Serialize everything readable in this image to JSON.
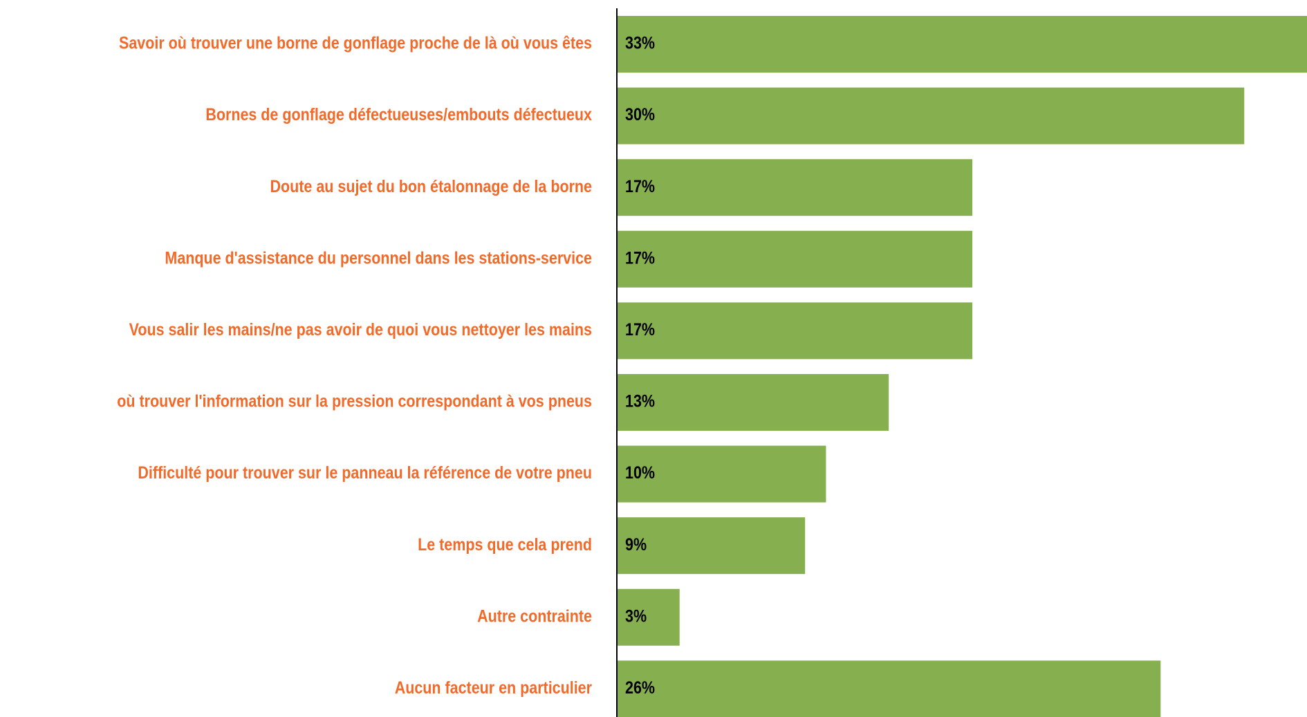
{
  "chart_data": {
    "type": "bar",
    "orientation": "horizontal",
    "categories": [
      "Savoir où trouver une borne de gonflage proche de là où vous êtes",
      "Bornes de gonflage défectueuses/embouts défectueux",
      "Doute au sujet du bon étalonnage de la borne",
      "Manque d'assistance du personnel dans les stations-service",
      "Vous salir les mains/ne pas avoir de quoi vous nettoyer les mains",
      "où trouver l'information sur la pression correspondant à vos pneus",
      "Difficulté pour trouver sur le panneau la référence de votre pneu",
      "Le temps que cela prend",
      "Autre contrainte",
      "Aucun facteur en particulier"
    ],
    "values": [
      33,
      30,
      17,
      17,
      17,
      13,
      10,
      9,
      3,
      26
    ],
    "value_labels": [
      "33%",
      "30%",
      "17%",
      "17%",
      "17%",
      "13%",
      "10%",
      "9%",
      "3%",
      "26%"
    ],
    "color": "#86b04f",
    "label_color": "#f26a2a",
    "xlim": [
      0,
      33
    ]
  }
}
